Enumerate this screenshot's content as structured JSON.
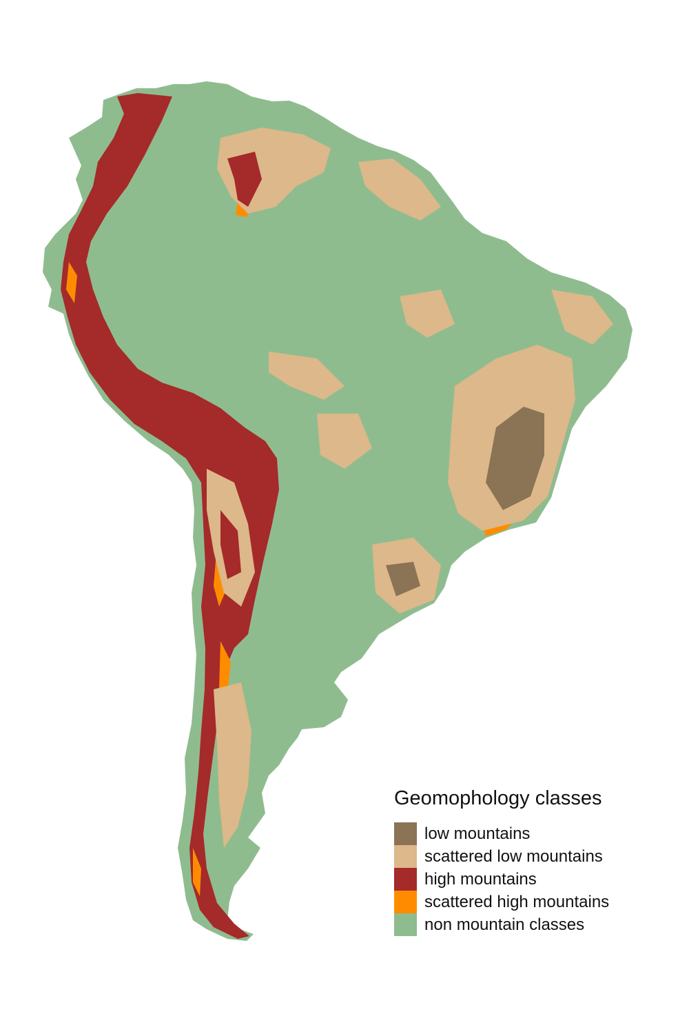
{
  "map": {
    "region": "South America",
    "background_color": "#ffffff"
  },
  "legend": {
    "title": "Geomophology classes",
    "items": [
      {
        "label": "low mountains",
        "color": "#8b7355"
      },
      {
        "label": "scattered low mountains",
        "color": "#dcb88a"
      },
      {
        "label": "high mountains",
        "color": "#a52a2a"
      },
      {
        "label": "scattered high mountains",
        "color": "#ff8c00"
      },
      {
        "label": "non mountain classes",
        "color": "#8fbc8f"
      }
    ]
  }
}
